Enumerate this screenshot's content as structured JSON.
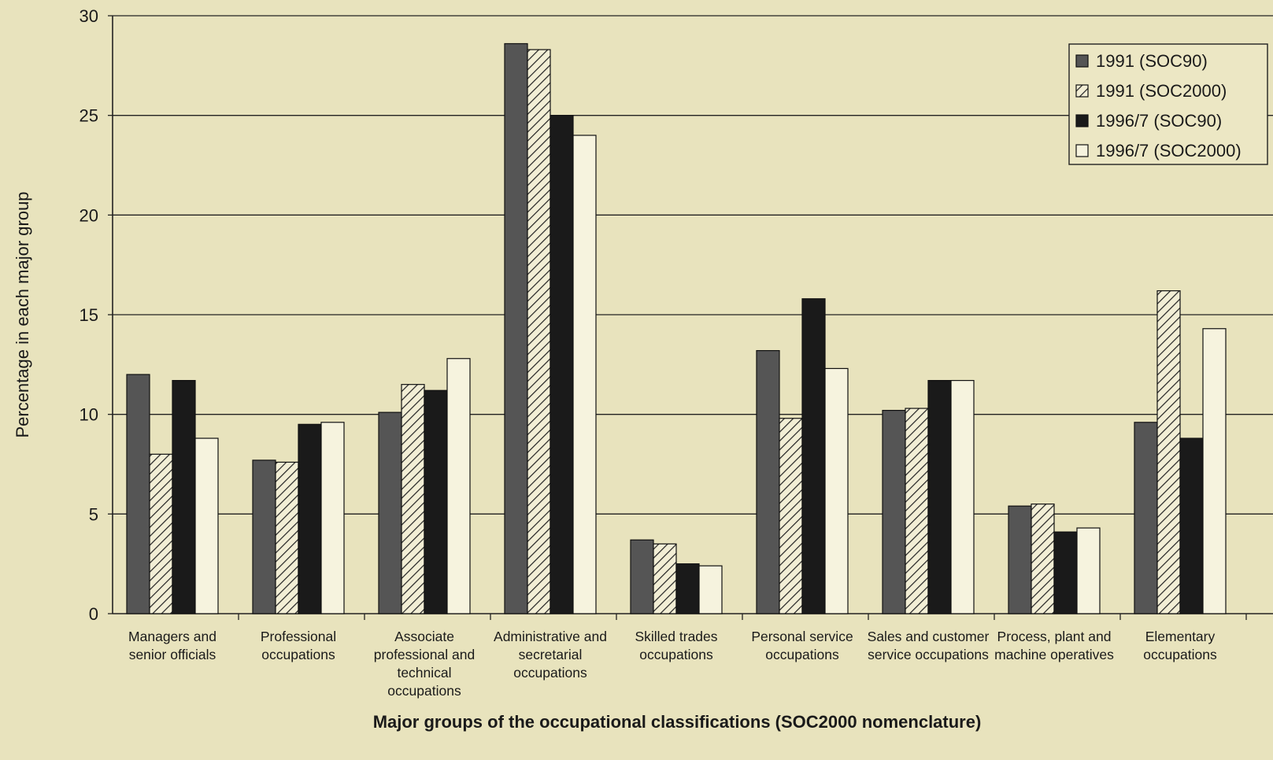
{
  "chart_data": {
    "type": "bar",
    "title": "",
    "xlabel": "Major groups of the occupational classifications (SOC2000 nomenclature)",
    "ylabel": "Percentage in each major group",
    "ylim": [
      0,
      30
    ],
    "yticks": [
      0,
      5,
      10,
      15,
      20,
      25,
      30
    ],
    "grid": true,
    "legend_position": "top-right",
    "categories": [
      [
        "Managers and",
        "senior officials"
      ],
      [
        "Professional",
        "occupations"
      ],
      [
        "Associate",
        "professional and",
        "technical",
        "occupations"
      ],
      [
        "Administrative and",
        "secretarial",
        "occupations"
      ],
      [
        "Skilled trades",
        "occupations"
      ],
      [
        "Personal service",
        "occupations"
      ],
      [
        "Sales and customer",
        "service occupations"
      ],
      [
        "Process, plant and",
        "machine operatives"
      ],
      [
        "Elementary",
        "occupations"
      ]
    ],
    "series": [
      {
        "name": "1991 (SOC90)",
        "fill": "#555555",
        "pattern": "solid-dark",
        "values": [
          12.0,
          7.7,
          10.1,
          28.6,
          3.7,
          13.2,
          10.2,
          5.4,
          9.6
        ]
      },
      {
        "name": "1991 (SOC2000)",
        "fill": "#e8e3bd",
        "pattern": "hatch",
        "values": [
          8.0,
          7.6,
          11.5,
          28.3,
          3.5,
          9.8,
          10.3,
          5.5,
          16.2
        ]
      },
      {
        "name": "1996/7 (SOC90)",
        "fill": "#1a1a1a",
        "pattern": "solid-black",
        "values": [
          11.7,
          9.5,
          11.2,
          25.0,
          2.5,
          15.8,
          11.7,
          4.1,
          8.8
        ]
      },
      {
        "name": "1996/7 (SOC2000)",
        "fill": "#f6f3de",
        "pattern": "hollow",
        "values": [
          8.8,
          9.6,
          12.8,
          24.0,
          2.4,
          12.3,
          11.7,
          4.3,
          14.3
        ]
      }
    ]
  }
}
